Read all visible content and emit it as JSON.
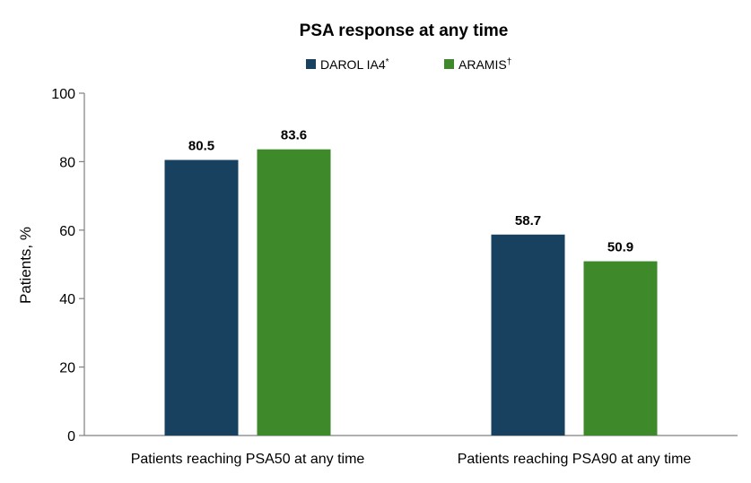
{
  "chart_data": {
    "type": "bar",
    "title": "PSA response at any time",
    "ylabel": "Patients, %",
    "xlabel": "",
    "ylim": [
      0,
      100
    ],
    "yticks": [
      0,
      20,
      40,
      60,
      80,
      100
    ],
    "grid": false,
    "legend_position": "top-center",
    "categories": [
      "Patients reaching PSA50 at any time",
      "Patients reaching PSA90 at any time"
    ],
    "series": [
      {
        "name": "DAROL IA4",
        "name_mark": "*",
        "color": "#17415f",
        "values": [
          80.5,
          58.7
        ]
      },
      {
        "name": "ARAMIS",
        "name_mark": "†",
        "color": "#3e8a2a",
        "values": [
          83.6,
          50.9
        ]
      }
    ]
  }
}
